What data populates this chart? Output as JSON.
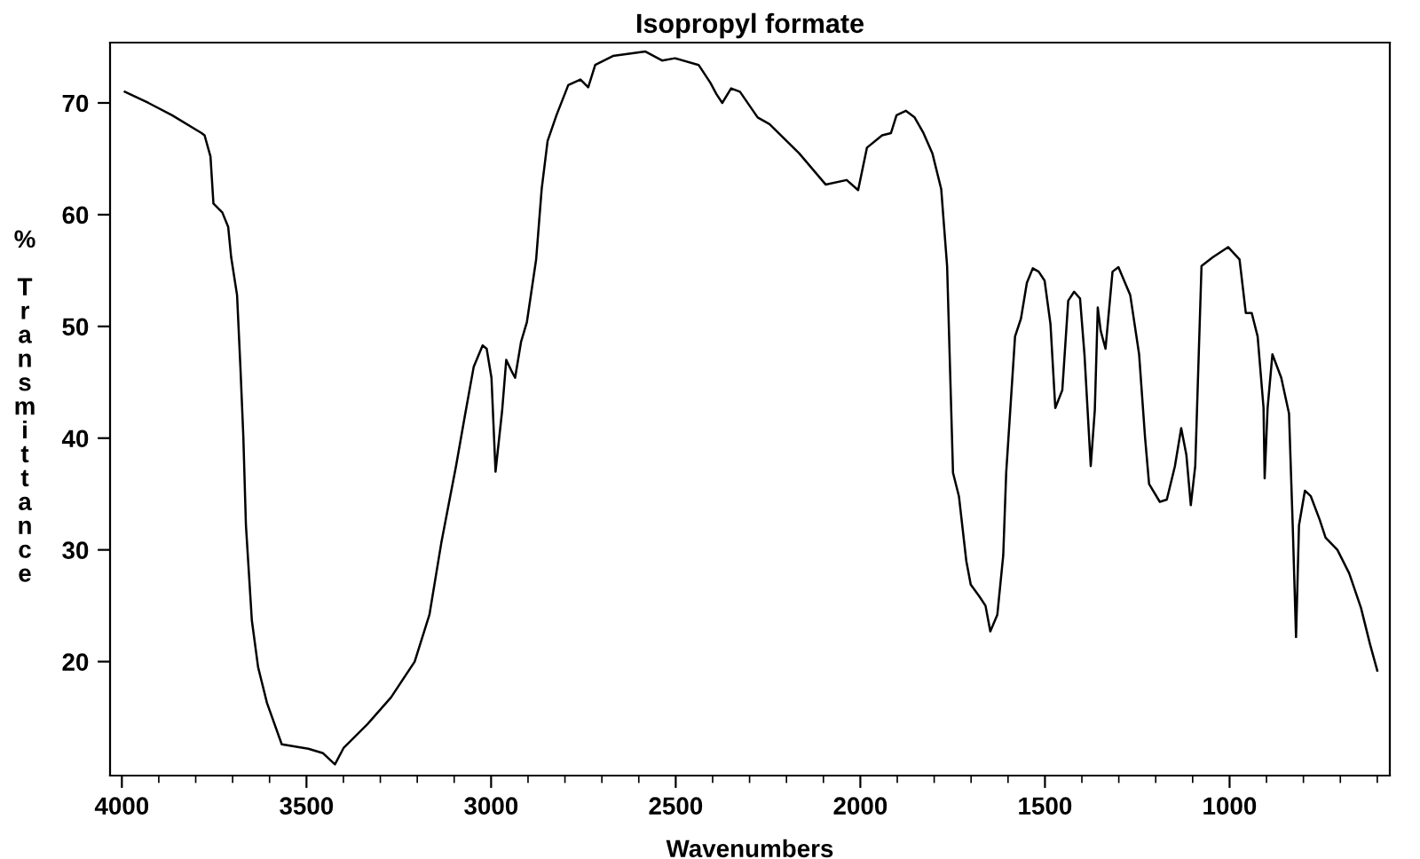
{
  "chart_data": {
    "type": "line",
    "title": "Isopropyl formate",
    "xlabel": "Wavenumbers",
    "ylabel": "% Transmittance",
    "xlim": [
      4032,
      566
    ],
    "ylim": [
      9.8,
      75.4
    ],
    "xticks": [
      4000,
      {
        "value": 3900,
        "label": null
      },
      {
        "value": 3800,
        "label": null
      },
      {
        "value": 3700,
        "label": null
      },
      {
        "value": 3600,
        "label": null
      },
      3500,
      {
        "value": 3400,
        "label": null
      },
      {
        "value": 3300,
        "label": null
      },
      {
        "value": 3200,
        "label": null
      },
      {
        "value": 3100,
        "label": null
      },
      3000,
      {
        "value": 2900,
        "label": null
      },
      {
        "value": 2800,
        "label": null
      },
      {
        "value": 2700,
        "label": null
      },
      {
        "value": 2600,
        "label": null
      },
      2500,
      {
        "value": 2400,
        "label": null
      },
      {
        "value": 2300,
        "label": null
      },
      {
        "value": 2200,
        "label": null
      },
      {
        "value": 2100,
        "label": null
      },
      2000,
      {
        "value": 1900,
        "label": null
      },
      {
        "value": 1800,
        "label": null
      },
      {
        "value": 1700,
        "label": null
      },
      {
        "value": 1600,
        "label": null
      },
      1500,
      {
        "value": 1400,
        "label": null
      },
      {
        "value": 1300,
        "label": null
      },
      {
        "value": 1200,
        "label": null
      },
      {
        "value": 1100,
        "label": null
      },
      1000,
      {
        "value": 900,
        "label": null
      },
      {
        "value": 800,
        "label": null
      },
      {
        "value": 700,
        "label": null
      },
      {
        "value": 600,
        "label": null
      }
    ],
    "yticks": [
      20,
      30,
      40,
      50,
      60,
      70
    ],
    "grid": false,
    "legend": false,
    "marker": "none",
    "line_style": "solid",
    "series": [
      {
        "color": "#000000",
        "x": [
          3992,
          3928,
          3864,
          3784,
          3776,
          3760,
          3752,
          3728,
          3712,
          3704,
          3688,
          3679,
          3671,
          3664,
          3648,
          3631,
          3607,
          3567,
          3495,
          3455,
          3423,
          3399,
          3335,
          3271,
          3207,
          3167,
          3135,
          3095,
          3071,
          3047,
          3023,
          3012,
          2999,
          2988,
          2970,
          2959,
          2943,
          2935,
          2919,
          2903,
          2878,
          2863,
          2847,
          2823,
          2791,
          2758,
          2737,
          2718,
          2670,
          2582,
          2537,
          2502,
          2438,
          2406,
          2390,
          2374,
          2350,
          2326,
          2278,
          2246,
          2166,
          2094,
          2037,
          2006,
          1982,
          1941,
          1917,
          1902,
          1877,
          1853,
          1829,
          1805,
          1781,
          1765,
          1749,
          1733,
          1713,
          1701,
          1677,
          1661,
          1648,
          1629,
          1613,
          1605,
          1581,
          1565,
          1549,
          1533,
          1517,
          1501,
          1485,
          1472,
          1453,
          1437,
          1421,
          1405,
          1393,
          1376,
          1365,
          1357,
          1349,
          1336,
          1317,
          1301,
          1269,
          1245,
          1229,
          1218,
          1189,
          1170,
          1148,
          1131,
          1117,
          1105,
          1093,
          1076,
          1045,
          1004,
          973,
          956,
          940,
          924,
          908,
          905,
          897,
          884,
          860,
          839,
          829,
          820,
          812,
          796,
          780,
          756,
          740,
          708,
          676,
          644,
          620,
          600
        ],
        "values": [
          71.0,
          70.0,
          68.9,
          67.3,
          67.1,
          65.2,
          61.0,
          60.2,
          58.9,
          56.2,
          52.8,
          46.4,
          40.1,
          32.2,
          23.7,
          19.5,
          16.3,
          12.6,
          12.2,
          11.8,
          10.8,
          12.3,
          14.4,
          16.8,
          20.0,
          24.2,
          30.6,
          37.5,
          42.0,
          46.4,
          48.3,
          48.0,
          45.4,
          37.0,
          42.5,
          47.0,
          45.9,
          45.4,
          48.6,
          50.4,
          56.0,
          62.3,
          66.6,
          68.9,
          71.6,
          72.1,
          71.4,
          73.4,
          74.2,
          74.6,
          73.8,
          74.0,
          73.4,
          71.8,
          70.8,
          70.0,
          71.3,
          71.0,
          68.7,
          68.1,
          65.5,
          62.7,
          63.1,
          62.2,
          66.0,
          67.1,
          67.3,
          68.9,
          69.3,
          68.7,
          67.3,
          65.5,
          62.3,
          55.4,
          36.9,
          34.8,
          29.0,
          26.9,
          25.8,
          25.0,
          22.7,
          24.2,
          29.5,
          36.9,
          49.1,
          50.7,
          53.9,
          55.2,
          54.9,
          54.1,
          50.2,
          42.7,
          44.3,
          52.3,
          53.1,
          52.5,
          47.5,
          37.5,
          42.5,
          51.7,
          49.6,
          48.0,
          54.9,
          55.3,
          52.8,
          47.5,
          40.1,
          35.9,
          34.3,
          34.5,
          37.5,
          40.9,
          38.5,
          34.0,
          37.5,
          55.4,
          56.2,
          57.1,
          56.0,
          51.2,
          51.2,
          49.1,
          42.7,
          36.4,
          42.7,
          47.5,
          45.4,
          42.2,
          32.2,
          22.2,
          32.2,
          35.3,
          34.8,
          32.7,
          31.1,
          30.0,
          27.9,
          24.8,
          21.6,
          19.2
        ]
      }
    ]
  }
}
